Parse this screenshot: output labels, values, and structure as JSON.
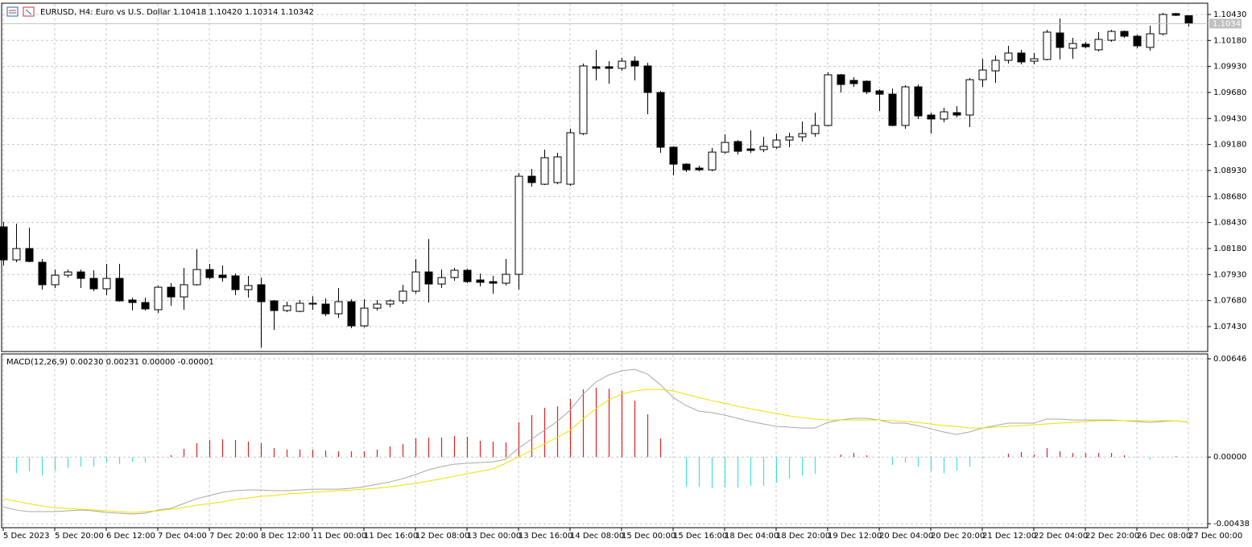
{
  "chart_data": [
    {
      "type": "candlestick",
      "title": "EURUSD, H4:  Euro vs U.S. Dollar  1.10418 1.10420 1.10314 1.10342",
      "categories": [
        "5 Dec 2023",
        null,
        null,
        null,
        "5 Dec 20:00",
        null,
        null,
        null,
        "6 Dec 12:00",
        null,
        null,
        null,
        "7 Dec 04:00",
        null,
        null,
        null,
        "7 Dec 20:00",
        null,
        null,
        null,
        "8 Dec 12:00",
        null,
        null,
        null,
        "11 Dec 00:00",
        null,
        null,
        null,
        "11 Dec 16:00",
        null,
        null,
        null,
        "12 Dec 08:00",
        null,
        null,
        null,
        "13 Dec 00:00",
        null,
        null,
        null,
        "13 Dec 16:00",
        null,
        null,
        null,
        "14 Dec 08:00",
        null,
        null,
        null,
        "15 Dec 00:00",
        null,
        null,
        null,
        "15 Dec 16:00",
        null,
        null,
        null,
        "18 Dec 04:00",
        null,
        null,
        null,
        "18 Dec 20:00",
        null,
        null,
        null,
        "19 Dec 12:00",
        null,
        null,
        null,
        "20 Dec 04:00",
        null,
        null,
        null,
        "20 Dec 20:00",
        null,
        null,
        null,
        "21 Dec 12:00",
        null,
        null,
        null,
        "22 Dec 04:00",
        null,
        null,
        null,
        "22 Dec 20:00",
        null,
        null,
        null,
        "26 Dec 08:00",
        null,
        null,
        null,
        "27 Dec 00:00"
      ],
      "open": [
        1.08388,
        1.08071,
        1.0818,
        1.08048,
        1.07832,
        1.07924,
        1.07955,
        1.07893,
        1.07793,
        1.07893,
        1.07685,
        1.07661,
        1.07592,
        1.07808,
        1.07715,
        1.07832,
        1.07978,
        1.07924,
        1.07917,
        1.07785,
        1.07832,
        1.07677,
        1.07584,
        1.07576,
        1.07646,
        1.07646,
        1.07553,
        1.07669,
        1.07437,
        1.07607,
        1.07646,
        1.07677,
        1.0777,
        1.07955,
        1.07839,
        1.07901,
        1.07971,
        1.07878,
        1.07862,
        1.07847,
        1.07932,
        1.08875,
        1.08798,
        1.08814,
        1.08798,
        1.09285,
        1.09927,
        1.09927,
        1.09912,
        1.09981,
        1.09935,
        1.0968,
        1.09154,
        1.08991,
        1.08953,
        1.08937,
        1.09107,
        1.09208,
        1.09138,
        1.09131,
        1.09154,
        1.09223,
        1.09254,
        1.09285,
        1.09363,
        1.0985,
        1.09796,
        1.09788,
        1.09695,
        1.09664,
        1.09363,
        1.09734,
        1.09463,
        1.09425,
        1.09486,
        1.09463,
        1.09803,
        1.09888,
        1.09989,
        1.10059,
        1.09981,
        1.09997,
        1.10252,
        1.10105,
        1.10144,
        1.1009,
        1.10182,
        1.10267,
        1.10221,
        1.10113,
        1.10244,
        1.10438,
        1.10418
      ],
      "high": [
        1.08435,
        1.08419,
        1.08381,
        1.08079,
        1.07978,
        1.07978,
        1.07978,
        1.07971,
        1.08033,
        1.08033,
        1.07708,
        1.07708,
        1.07824,
        1.07847,
        1.07994,
        1.08172,
        1.08033,
        1.08017,
        1.0794,
        1.07917,
        1.07901,
        1.07685,
        1.07669,
        1.07685,
        1.07723,
        1.077,
        1.07801,
        1.07692,
        1.07692,
        1.07685,
        1.07692,
        1.07832,
        1.08079,
        1.08272,
        1.07978,
        1.07994,
        1.07986,
        1.0794,
        1.07917,
        1.08079,
        1.08906,
        1.08945,
        1.09131,
        1.091,
        1.09332,
        1.09958,
        1.1009,
        1.09981,
        1.10012,
        1.10028,
        1.09966,
        1.09695,
        1.09162,
        1.08999,
        1.08976,
        1.09146,
        1.09278,
        1.09223,
        1.09316,
        1.09254,
        1.09285,
        1.09293,
        1.09401,
        1.09486,
        1.09873,
        1.09858,
        1.09827,
        1.09796,
        1.09711,
        1.09718,
        1.09749,
        1.09757,
        1.09486,
        1.09533,
        1.09548,
        1.09819,
        1.10004,
        1.10035,
        1.10128,
        1.1009,
        1.10059,
        1.10283,
        1.10391,
        1.10206,
        1.10167,
        1.1026,
        1.10283,
        1.10275,
        1.10236,
        1.10322,
        1.10445,
        1.10445,
        1.1042
      ],
      "low": [
        1.08017,
        1.08048,
        1.08048,
        1.07785,
        1.07801,
        1.07901,
        1.07801,
        1.0777,
        1.07731,
        1.07669,
        1.07584,
        1.07584,
        1.07561,
        1.0763,
        1.07592,
        1.07824,
        1.07886,
        1.07862,
        1.07731,
        1.07708,
        1.07228,
        1.07398,
        1.07569,
        1.07569,
        1.07592,
        1.0753,
        1.07514,
        1.07414,
        1.07422,
        1.07584,
        1.07615,
        1.07646,
        1.07746,
        1.07661,
        1.07801,
        1.0787,
        1.07847,
        1.07816,
        1.07746,
        1.07824,
        1.07785,
        1.08775,
        1.0879,
        1.08798,
        1.08783,
        1.0927,
        1.09796,
        1.09765,
        1.09888,
        1.09796,
        1.09471,
        1.091,
        1.08883,
        1.08914,
        1.08922,
        1.08922,
        1.09092,
        1.09084,
        1.091,
        1.09107,
        1.09138,
        1.09154,
        1.09208,
        1.09254,
        1.09355,
        1.0968,
        1.09734,
        1.09664,
        1.09502,
        1.09355,
        1.09332,
        1.09425,
        1.09285,
        1.09394,
        1.0944,
        1.09347,
        1.09734,
        1.09772,
        1.09958,
        1.0995,
        1.0995,
        1.09989,
        1.09997,
        1.10004,
        1.10105,
        1.10074,
        1.10167,
        1.10206,
        1.10105,
        1.10082,
        1.10229,
        1.10414,
        1.10314
      ],
      "close": [
        1.08071,
        1.0818,
        1.08056,
        1.07832,
        1.07924,
        1.07955,
        1.07893,
        1.07793,
        1.07893,
        1.07677,
        1.07661,
        1.076,
        1.07808,
        1.07715,
        1.07832,
        1.07978,
        1.07901,
        1.07901,
        1.07785,
        1.07824,
        1.07669,
        1.07584,
        1.0763,
        1.07654,
        1.07654,
        1.07553,
        1.07669,
        1.07437,
        1.07607,
        1.07646,
        1.07677,
        1.0777,
        1.07955,
        1.07839,
        1.07901,
        1.07971,
        1.07862,
        1.07855,
        1.07847,
        1.07932,
        1.08875,
        1.08814,
        1.09053,
        1.09061,
        1.09293,
        1.09935,
        1.09912,
        1.09912,
        1.09981,
        1.09935,
        1.0968,
        1.09154,
        1.08991,
        1.08937,
        1.08937,
        1.09107,
        1.092,
        1.09115,
        1.09123,
        1.09162,
        1.09223,
        1.09254,
        1.09285,
        1.09363,
        1.0985,
        1.09757,
        1.09765,
        1.09687,
        1.09664,
        1.09363,
        1.09734,
        1.09455,
        1.09425,
        1.09494,
        1.09463,
        1.09803,
        1.09896,
        1.09989,
        1.10059,
        1.09974,
        1.10004,
        1.1026,
        1.10113,
        1.10151,
        1.1012,
        1.1019,
        1.10267,
        1.10221,
        1.10128,
        1.10244,
        1.1043,
        1.10422,
        1.10342
      ],
      "up_color": "#ffffff",
      "down_color": "#000000",
      "outline_color": "#000000",
      "bid_color": "#c0c0c0",
      "ylim": [
        1.0719,
        1.10538
      ],
      "yticks": [
        {
          "value": 1.1043,
          "label": "1.10430"
        },
        {
          "value": 1.1018,
          "label": "1.10180"
        },
        {
          "value": 1.0993,
          "label": "1.09930"
        },
        {
          "value": 1.0968,
          "label": "1.09680"
        },
        {
          "value": 1.0943,
          "label": "1.09430"
        },
        {
          "value": 1.0918,
          "label": "1.09180"
        },
        {
          "value": 1.0893,
          "label": "1.08930"
        },
        {
          "value": 1.0868,
          "label": "1.08680"
        },
        {
          "value": 1.0843,
          "label": "1.08430"
        },
        {
          "value": 1.0818,
          "label": "1.08180"
        },
        {
          "value": 1.0793,
          "label": "1.07930"
        },
        {
          "value": 1.0768,
          "label": "1.07680"
        },
        {
          "value": 1.0743,
          "label": "1.07430"
        }
      ],
      "grid": true
    },
    {
      "type": "macd",
      "title": "MACD(12,26,9) 0.00230 0.00231 0.00000 -0.00001",
      "series": [
        {
          "color": "#a8a8a8",
          "values": [
            -0.00327,
            -0.00348,
            -0.00358,
            -0.00358,
            -0.00358,
            -0.00353,
            -0.00348,
            -0.00353,
            -0.00364,
            -0.00369,
            -0.00374,
            -0.00369,
            -0.00348,
            -0.00337,
            -0.00306,
            -0.00274,
            -0.00253,
            -0.00232,
            -0.00221,
            -0.00216,
            -0.00216,
            -0.00221,
            -0.00221,
            -0.00216,
            -0.00211,
            -0.00211,
            -0.00211,
            -0.00205,
            -0.00195,
            -0.00179,
            -0.00163,
            -0.00142,
            -0.00115,
            -0.00084,
            -0.00062,
            -0.00047,
            -0.00041,
            -0.00036,
            -0.00031,
            -0.00015,
            0.00059,
            0.00117,
            0.00176,
            0.00234,
            0.00308,
            0.00413,
            0.00493,
            0.0054,
            0.00567,
            0.00577,
            0.00546,
            0.00477,
            0.00392,
            0.00339,
            0.00302,
            0.00292,
            0.00276,
            0.00255,
            0.00234,
            0.00218,
            0.00202,
            0.00197,
            0.00191,
            0.00191,
            0.00228,
            0.00244,
            0.00255,
            0.00255,
            0.00244,
            0.00223,
            0.00223,
            0.00207,
            0.00186,
            0.00165,
            0.00149,
            0.00165,
            0.00191,
            0.00207,
            0.00223,
            0.00223,
            0.00223,
            0.0025,
            0.0025,
            0.00244,
            0.00244,
            0.00244,
            0.00244,
            0.00239,
            0.00234,
            0.00228,
            0.00234,
            0.00239,
            0.0023
          ]
        },
        {
          "color": "#f0e000",
          "values": [
            -0.00274,
            -0.0029,
            -0.00306,
            -0.00321,
            -0.00332,
            -0.00337,
            -0.00343,
            -0.00348,
            -0.00353,
            -0.00358,
            -0.00364,
            -0.00358,
            -0.00353,
            -0.00343,
            -0.00332,
            -0.00316,
            -0.00306,
            -0.00295,
            -0.00279,
            -0.00269,
            -0.00258,
            -0.00253,
            -0.00242,
            -0.00237,
            -0.00232,
            -0.00226,
            -0.00221,
            -0.00216,
            -0.00211,
            -0.00205,
            -0.00195,
            -0.00184,
            -0.00173,
            -0.00158,
            -0.00142,
            -0.00126,
            -0.0011,
            -0.00094,
            -0.00078,
            -0.00041,
            1e-05,
            0.00043,
            0.00086,
            0.00128,
            0.00176,
            0.0025,
            0.00318,
            0.00376,
            0.00413,
            0.00435,
            0.00445,
            0.00445,
            0.00435,
            0.00413,
            0.00392,
            0.00371,
            0.00355,
            0.00334,
            0.00318,
            0.00302,
            0.00287,
            0.00271,
            0.0026,
            0.0025,
            0.00244,
            0.00244,
            0.00244,
            0.00244,
            0.00244,
            0.00239,
            0.00234,
            0.00228,
            0.00218,
            0.00207,
            0.00202,
            0.00191,
            0.00191,
            0.00197,
            0.00202,
            0.00207,
            0.00213,
            0.00218,
            0.00223,
            0.00228,
            0.00234,
            0.00239,
            0.00239,
            0.00239,
            0.00239,
            0.00239,
            0.00239,
            0.00239,
            0.00231
          ]
        }
      ],
      "histogram": {
        "color": "#e02020",
        "negative_color": "#40e0e0",
        "values": [
          null,
          -0.00105,
          -0.00094,
          -0.00121,
          -0.00089,
          -0.00073,
          -0.00062,
          -0.00062,
          -0.00036,
          -0.00047,
          -0.00031,
          -0.00036,
          0,
          0.00012,
          0.00054,
          0.00091,
          0.00112,
          0.00117,
          0.00112,
          0.00102,
          0.00091,
          0.00059,
          0.00049,
          0.00049,
          0.00049,
          0.00043,
          0.00038,
          0.00038,
          0.00038,
          0.00049,
          0.0007,
          0.00086,
          0.00123,
          0.00128,
          0.00128,
          0.00139,
          0.00133,
          0.00107,
          0.00102,
          0.00096,
          0.00228,
          0.00276,
          0.00324,
          0.00334,
          0.00382,
          0.00445,
          0.00456,
          0.0045,
          0.00435,
          0.00371,
          0.00281,
          0.00123,
          0,
          -0.00195,
          -0.00195,
          -0.00205,
          -0.002,
          -0.002,
          -0.00189,
          -0.00189,
          -0.00168,
          -0.00142,
          -0.00121,
          -0.0011,
          0,
          0.00017,
          0.00027,
          0.00012,
          0,
          -0.00052,
          -0.00036,
          -0.00062,
          -0.00094,
          -0.00105,
          -0.00089,
          -0.00062,
          -0.0001,
          0,
          0.00022,
          0.00033,
          0.00017,
          0.00059,
          0.00038,
          0.00027,
          0.00027,
          0.00027,
          0.00027,
          0.00012,
          0,
          -0.00015,
          -5e-05,
          6e-05,
          -1e-05
        ]
      },
      "ylim": [
        -0.00464,
        0.00678
      ],
      "yticks": [
        0.00646,
        {
          "value": 0,
          "label": "0.00000"
        },
        -0.00438
      ],
      "grid": true
    }
  ]
}
